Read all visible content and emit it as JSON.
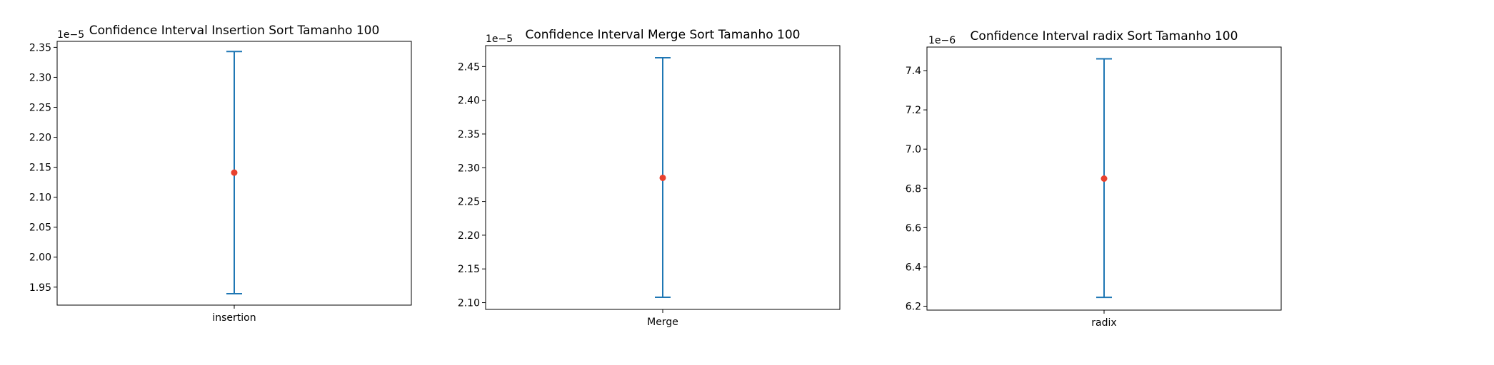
{
  "colors": {
    "errorbar": "#1f77b4",
    "point": "#e8412e",
    "axes": "#000000",
    "background": "#ffffff"
  },
  "chart_data": [
    {
      "type": "errorbar",
      "title": "Confidence Interval Insertion Sort Tamanho 100",
      "categories": [
        "insertion"
      ],
      "xlabel": "",
      "ylabel": "",
      "offset_label": "1e−5",
      "scale": 1e-05,
      "ylim": [
        1.92,
        2.36
      ],
      "yticks": [
        1.95,
        2.0,
        2.05,
        2.1,
        2.15,
        2.2,
        2.25,
        2.3,
        2.35
      ],
      "ytick_labels": [
        "1.95",
        "2.00",
        "2.05",
        "2.10",
        "2.15",
        "2.20",
        "2.25",
        "2.30",
        "2.35"
      ],
      "points": [
        {
          "category": "insertion",
          "mean": 2.141,
          "lower": 1.939,
          "upper": 2.343
        }
      ],
      "grid": false
    },
    {
      "type": "errorbar",
      "title": "Confidence Interval Merge Sort Tamanho 100",
      "categories": [
        "Merge"
      ],
      "xlabel": "",
      "ylabel": "",
      "offset_label": "1e−5",
      "scale": 1e-05,
      "ylim": [
        2.09,
        2.481
      ],
      "yticks": [
        2.1,
        2.15,
        2.2,
        2.25,
        2.3,
        2.35,
        2.4,
        2.45
      ],
      "ytick_labels": [
        "2.10",
        "2.15",
        "2.20",
        "2.25",
        "2.30",
        "2.35",
        "2.40",
        "2.45"
      ],
      "points": [
        {
          "category": "Merge",
          "mean": 2.285,
          "lower": 2.108,
          "upper": 2.463
        }
      ],
      "grid": false
    },
    {
      "type": "errorbar",
      "title": "Confidence Interval radix Sort Tamanho 100",
      "categories": [
        "radix"
      ],
      "xlabel": "",
      "ylabel": "",
      "offset_label": "1e−6",
      "scale": 1e-06,
      "ylim": [
        6.18,
        7.52
      ],
      "yticks": [
        6.2,
        6.4,
        6.6,
        6.8,
        7.0,
        7.2,
        7.4
      ],
      "ytick_labels": [
        "6.2",
        "6.4",
        "6.6",
        "6.8",
        "7.0",
        "7.2",
        "7.4"
      ],
      "points": [
        {
          "category": "radix",
          "mean": 6.85,
          "lower": 6.245,
          "upper": 7.46
        }
      ],
      "grid": false
    }
  ]
}
